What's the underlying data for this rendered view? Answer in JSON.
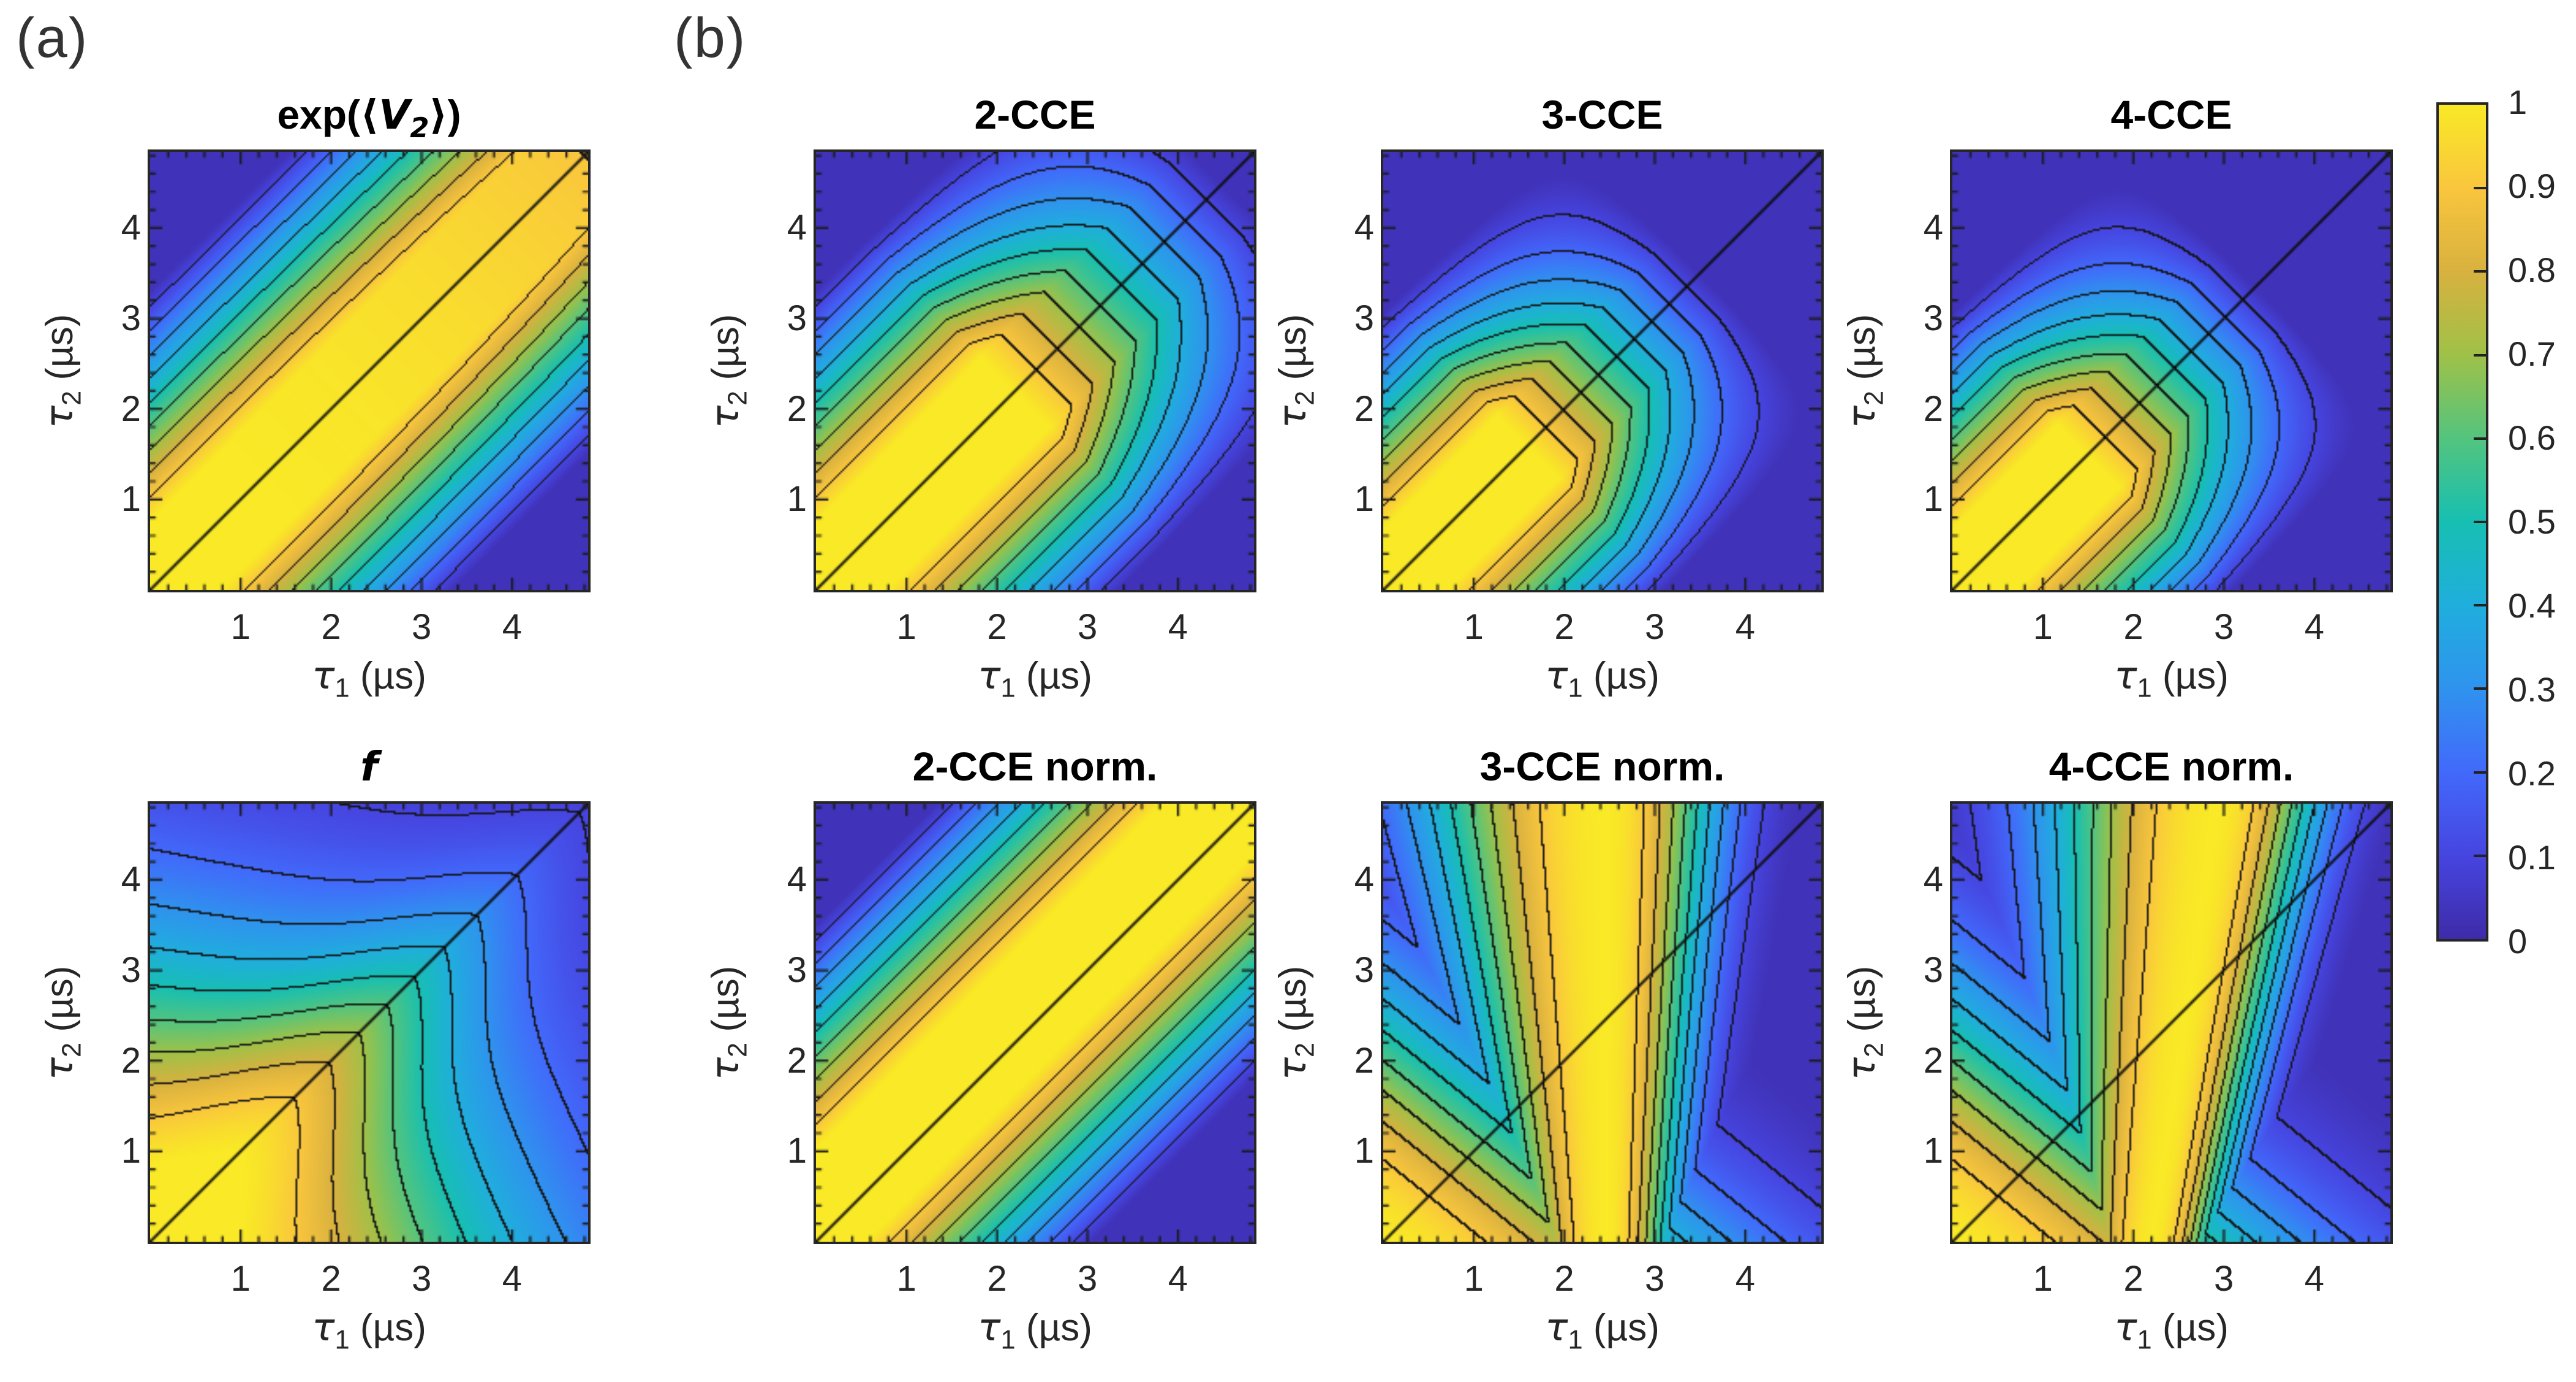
{
  "panel_labels": {
    "a": "(a)",
    "b": "(b)"
  },
  "figure": {
    "colormap_name": "parula",
    "colormap_stops": [
      [
        0.0,
        "#3e2ba8"
      ],
      [
        0.1,
        "#4645e0"
      ],
      [
        0.2,
        "#4269fb"
      ],
      [
        0.3,
        "#2f93ee"
      ],
      [
        0.4,
        "#20aedd"
      ],
      [
        0.5,
        "#17bfb2"
      ],
      [
        0.6,
        "#53c47e"
      ],
      [
        0.7,
        "#9fc148"
      ],
      [
        0.8,
        "#d8b13f"
      ],
      [
        0.9,
        "#f9c63d"
      ],
      [
        1.0,
        "#f9e926"
      ]
    ],
    "contour_levels": [
      0.1,
      0.2,
      0.3,
      0.4,
      0.5,
      0.6,
      0.7,
      0.8,
      0.9
    ],
    "contour_line_color": "#141414",
    "diagonal_line": "y = x",
    "axis": {
      "range": [
        0,
        4.84
      ],
      "major_ticks": [
        1,
        2,
        3,
        4
      ],
      "minor_tick_step": 0.2,
      "xlabel": {
        "sym": "τ",
        "sub": "1",
        "unit": "(µs)"
      },
      "ylabel": {
        "sym": "τ",
        "sub": "2",
        "unit": "(µs)"
      }
    },
    "colorbar": {
      "range": [
        0,
        1
      ],
      "ticks": [
        {
          "value": 1.0,
          "label": "1"
        },
        {
          "value": 0.9,
          "label": "0.9"
        },
        {
          "value": 0.8,
          "label": "0.8"
        },
        {
          "value": 0.7,
          "label": "0.7"
        },
        {
          "value": 0.6,
          "label": "0.6"
        },
        {
          "value": 0.5,
          "label": "0.5"
        },
        {
          "value": 0.4,
          "label": "0.4"
        },
        {
          "value": 0.3,
          "label": "0.3"
        },
        {
          "value": 0.2,
          "label": "0.2"
        },
        {
          "value": 0.1,
          "label": "0.1"
        },
        {
          "value": 0.0,
          "label": "0"
        }
      ]
    }
  },
  "chart_data": [
    {
      "id": "exp_v2",
      "panel": "a",
      "row": 0,
      "col": 0,
      "type": "contour",
      "title_plain": "exp(⟨V2⟩)",
      "title_segments": [
        {
          "text": "exp(⟨"
        },
        {
          "text": "V",
          "style": "i"
        },
        {
          "text": "2",
          "style": "isub"
        },
        {
          "text": "⟩)"
        }
      ],
      "description": "Bright yellow ridge of value ≈1 along the τ1=τ2 diagonal, decaying in parallel bands to ≈0.05 at the off-diagonal corners; slight decay along the diagonal toward long times.",
      "field_model": {
        "type": "diagband",
        "half_width": 0.78,
        "falloff": 2.62,
        "soft_decay": {
          "amp": 0.1,
          "t0": 0.8,
          "span": 4.0
        }
      }
    },
    {
      "id": "cce2",
      "panel": "b",
      "row": 0,
      "col": 1,
      "type": "contour",
      "title_plain": "2-CCE",
      "title_segments": [
        {
          "text": "2-CCE"
        }
      ],
      "description": "High-coherence yellow lobe near the origin extending along the diagonal to ≈2.5 µs, closed nested contours around it; dark blue at long off-diagonal and long diagonal times.",
      "field_model": {
        "type": "diagband",
        "half_width": 0.78,
        "falloff": 2.62,
        "diag_decay": {
          "t0": 2.2,
          "span": 2.35
        }
      }
    },
    {
      "id": "cce3",
      "panel": "b",
      "row": 0,
      "col": 2,
      "type": "contour",
      "title_plain": "3-CCE",
      "title_segments": [
        {
          "text": "3-CCE"
        }
      ],
      "description": "Compact yellow lobe near the origin reaching ≈1.8 µs along the diagonal; outermost 0.1 contour crosses the diagonal near 3.4 µs; remainder dark blue.",
      "field_model": {
        "type": "diagband",
        "half_width": 0.7,
        "falloff": 2.45,
        "diag_decay": {
          "t0": 1.6,
          "span": 1.95
        }
      }
    },
    {
      "id": "cce4",
      "panel": "b",
      "row": 0,
      "col": 3,
      "type": "contour",
      "title_plain": "4-CCE",
      "title_segments": [
        {
          "text": "4-CCE"
        }
      ],
      "description": "Nearly identical to 3-CCE: compact yellow lobe near the origin, slightly faster decay along the diagonal.",
      "field_model": {
        "type": "diagband",
        "half_width": 0.7,
        "falloff": 2.45,
        "diag_decay": {
          "t0": 1.5,
          "span": 1.9
        }
      }
    },
    {
      "id": "f",
      "panel": "a",
      "row": 1,
      "col": 0,
      "type": "contour",
      "title_plain": "f",
      "title_segments": [
        {
          "text": "f",
          "style": "i"
        }
      ],
      "description": "Broad rounded decay from ≈1 at the lower-left corner (bulging along the diagonal to ≈1.6 µs) to ≈0.05 at the upper-right corner; bottom-right stays cyan ≈0.3–0.45, top-left blue ≈0.3.",
      "field_model": {
        "type": "radial",
        "diag_boost": 0.55,
        "boost_width": 1.25,
        "corner_push": 1.25,
        "asym": 0.5,
        "scale": 3.6
      }
    },
    {
      "id": "cce2_norm",
      "panel": "b",
      "row": 1,
      "col": 1,
      "type": "contour",
      "title_plain": "2-CCE norm.",
      "title_segments": [
        {
          "text": "2-CCE norm."
        }
      ],
      "description": "Yellow ridge along the full diagonal (slightly shifted above it), like exp(⟨V2⟩); parallel contour bands decaying to dark blue in the off-diagonal corners.",
      "field_model": {
        "type": "diagband",
        "half_width": 0.8,
        "falloff": 2.55,
        "center_offset": 0.25
      }
    },
    {
      "id": "cce3_norm",
      "panel": "b",
      "row": 1,
      "col": 2,
      "type": "contour",
      "title_plain": "3-CCE norm.",
      "title_segments": [
        {
          "text": "3-CCE norm."
        }
      ],
      "description": "Bright yellow band around τ1≈2.5 µs widening toward large τ2, plus yellow lower-left corner with a slight dip near τ1≈1.4 µs; teal arcs on the left, steep drop to dark blue for τ1≳3.5 µs.",
      "field_model": {
        "type": "vband",
        "center": [
          2.45,
          0
        ],
        "width_left": [
          0.95,
          0.22
        ],
        "width_right": [
          0.72,
          0.1
        ],
        "power": 2.2,
        "corner": {
          "xw": 0.8,
          "scale": 2.8
        }
      }
    },
    {
      "id": "cce4_norm",
      "panel": "b",
      "row": 1,
      "col": 3,
      "type": "contour",
      "title_plain": "4-CCE norm.",
      "title_segments": [
        {
          "text": "4-CCE norm."
        }
      ],
      "description": "Like 3-CCE norm. but the yellow band is tilted, its center moving from τ1≈2.2 µs at the bottom to ≈2.9 µs at the top; dark blue at large τ1.",
      "field_model": {
        "type": "vband",
        "center": [
          2.2,
          0.15
        ],
        "width_left": [
          0.9,
          0.2
        ],
        "width_right": [
          0.68,
          0.09
        ],
        "power": 2.2,
        "corner": {
          "xw": 0.8,
          "scale": 2.8
        }
      }
    }
  ]
}
